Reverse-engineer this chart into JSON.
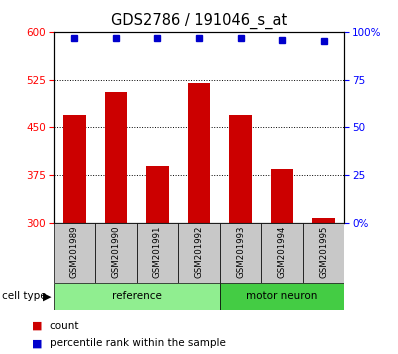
{
  "title": "GDS2786 / 191046_s_at",
  "samples": [
    "GSM201989",
    "GSM201990",
    "GSM201991",
    "GSM201992",
    "GSM201993",
    "GSM201994",
    "GSM201995"
  ],
  "counts": [
    470,
    505,
    390,
    520,
    470,
    385,
    308
  ],
  "percentile_ranks": [
    97,
    97,
    97,
    97,
    97,
    96,
    95
  ],
  "ref_count": 4,
  "motor_count": 3,
  "ylim_left": [
    300,
    600
  ],
  "ylim_right": [
    0,
    100
  ],
  "yticks_left": [
    300,
    375,
    450,
    525,
    600
  ],
  "yticks_right": [
    0,
    25,
    50,
    75,
    100
  ],
  "ytick_labels_right": [
    "0%",
    "25",
    "50",
    "75",
    "100%"
  ],
  "hgrid_vals": [
    375,
    450,
    525
  ],
  "bar_color": "#cc0000",
  "marker_color": "#0000cc",
  "ref_bg_color": "#90EE90",
  "motor_bg_color": "#44cc44",
  "sample_bg_color": "#c8c8c8",
  "bar_width": 0.55,
  "legend_count_label": "count",
  "legend_percentile_label": "percentile rank within the sample",
  "cell_type_label": "cell type"
}
